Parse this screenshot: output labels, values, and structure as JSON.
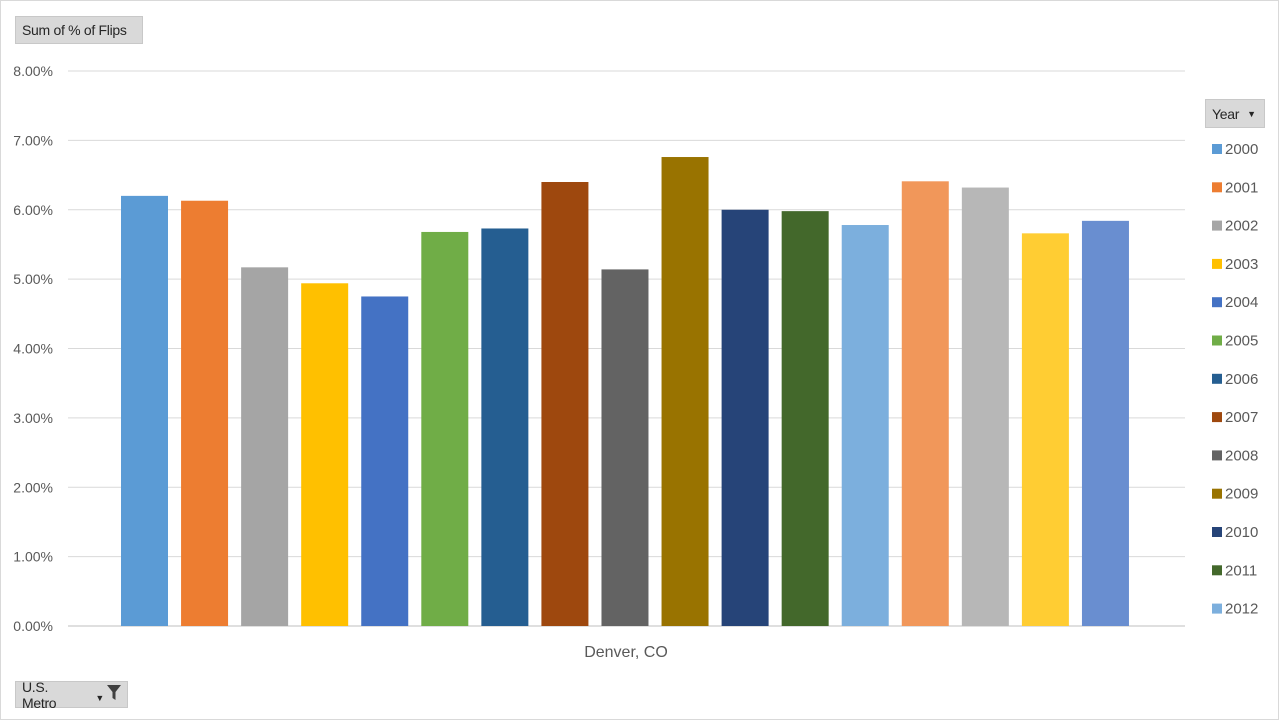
{
  "value_field": {
    "label": "Sum of % of Flips"
  },
  "axis_field": {
    "label": "U.S. Metro"
  },
  "legend_field": {
    "label": "Year"
  },
  "icons": {
    "dropdown": "chevron-down-icon",
    "filter": "filter-icon"
  },
  "chart_data": {
    "type": "bar",
    "categories": [
      "Denver, CO"
    ],
    "ylim": [
      0,
      0.08
    ],
    "yticks": [
      0,
      0.01,
      0.02,
      0.03,
      0.04,
      0.05,
      0.06,
      0.07,
      0.08
    ],
    "ytick_labels": [
      "0.00%",
      "1.00%",
      "2.00%",
      "3.00%",
      "4.00%",
      "5.00%",
      "6.00%",
      "7.00%",
      "8.00%"
    ],
    "grid": true,
    "legend_position": "right",
    "legend_title": "Year",
    "series": [
      {
        "name": "2000",
        "color": "#5b9bd5",
        "values": [
          0.062
        ]
      },
      {
        "name": "2001",
        "color": "#ed7d31",
        "values": [
          0.0613
        ]
      },
      {
        "name": "2002",
        "color": "#a5a5a5",
        "values": [
          0.0517
        ]
      },
      {
        "name": "2003",
        "color": "#ffc000",
        "values": [
          0.0494
        ]
      },
      {
        "name": "2004",
        "color": "#4472c4",
        "values": [
          0.0475
        ]
      },
      {
        "name": "2005",
        "color": "#70ad47",
        "values": [
          0.0568
        ]
      },
      {
        "name": "2006",
        "color": "#255e91",
        "values": [
          0.0573
        ]
      },
      {
        "name": "2007",
        "color": "#9e480e",
        "values": [
          0.064
        ]
      },
      {
        "name": "2008",
        "color": "#636363",
        "values": [
          0.0514
        ]
      },
      {
        "name": "2009",
        "color": "#997300",
        "values": [
          0.0676
        ]
      },
      {
        "name": "2010",
        "color": "#264478",
        "values": [
          0.06
        ]
      },
      {
        "name": "2011",
        "color": "#43682b",
        "values": [
          0.0598
        ]
      },
      {
        "name": "2012",
        "color": "#7cafdd",
        "values": [
          0.0578
        ]
      },
      {
        "name": "",
        "color": "#f1975a",
        "values": [
          0.0641
        ]
      },
      {
        "name": "",
        "color": "#b7b7b7",
        "values": [
          0.0632
        ]
      },
      {
        "name": "",
        "color": "#ffcd33",
        "values": [
          0.0566
        ]
      },
      {
        "name": "",
        "color": "#698ed0",
        "values": [
          0.0584
        ]
      }
    ]
  }
}
